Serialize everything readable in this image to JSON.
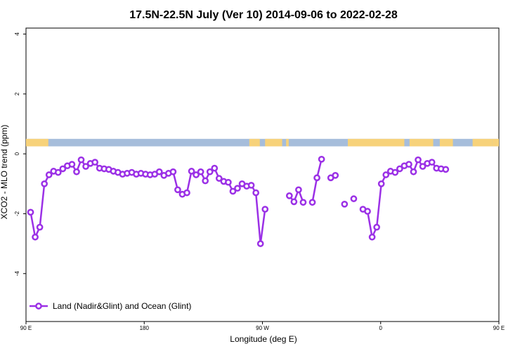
{
  "chart_data": {
    "type": "line",
    "title": "17.5N-22.5N July (Ver 10)   2014-09-06 to 2022-02-28",
    "xlabel": "Longitude (deg E)",
    "ylabel": "XCO2 - MLO trend (ppm)",
    "xlim": [
      90,
      450
    ],
    "ylim": [
      -5.6,
      4.2
    ],
    "x_ticks": [
      {
        "value": 90,
        "label": "90 E"
      },
      {
        "value": 180,
        "label": "180"
      },
      {
        "value": 270,
        "label": "90 W"
      },
      {
        "value": 360,
        "label": "0"
      },
      {
        "value": 450,
        "label": "90 E"
      },
      {
        "value": 540,
        "label": "180"
      }
    ],
    "y_ticks": [
      {
        "value": 4,
        "label": "4"
      },
      {
        "value": 2,
        "label": "2"
      },
      {
        "value": 0,
        "label": "0"
      },
      {
        "value": -2,
        "label": "-2"
      },
      {
        "value": -4,
        "label": "-4"
      }
    ],
    "land_ocean_strip": {
      "ocean_color": "#a6bddb",
      "land_color": "#f7d27a",
      "land_spans": [
        [
          90,
          107
        ],
        [
          260,
          268
        ],
        [
          272,
          285
        ],
        [
          288,
          290
        ],
        [
          335,
          378
        ],
        [
          382,
          400
        ],
        [
          405,
          415
        ],
        [
          430,
          445
        ],
        [
          445,
          450
        ],
        [
          452,
          456
        ]
      ]
    },
    "series": [
      {
        "name": "Land (Nadir&Glint) and Ocean (Glint)",
        "color": "#9b30e6",
        "points": [
          [
            93.5,
            -1.95
          ],
          [
            97,
            -2.78
          ],
          [
            100.5,
            -2.45
          ],
          [
            104,
            -1.0
          ],
          [
            107.5,
            -0.7
          ],
          [
            111,
            -0.58
          ],
          [
            114.5,
            -0.62
          ],
          [
            118,
            -0.5
          ],
          [
            121.5,
            -0.4
          ],
          [
            125,
            -0.35
          ],
          [
            128.5,
            -0.6
          ],
          [
            132,
            -0.2
          ],
          [
            135.5,
            -0.42
          ],
          [
            139,
            -0.32
          ],
          [
            142.5,
            -0.28
          ],
          [
            146,
            -0.48
          ],
          [
            149.5,
            -0.5
          ],
          [
            153,
            -0.52
          ],
          [
            156.5,
            -0.58
          ],
          [
            160,
            -0.62
          ],
          [
            163.5,
            -0.68
          ],
          [
            167,
            -0.65
          ],
          [
            170.5,
            -0.62
          ],
          [
            174,
            -0.68
          ],
          [
            177.5,
            -0.65
          ],
          [
            181,
            -0.68
          ],
          [
            184.5,
            -0.7
          ],
          [
            188,
            -0.68
          ],
          [
            191.5,
            -0.6
          ],
          [
            195,
            -0.72
          ],
          [
            198.5,
            -0.65
          ],
          [
            202,
            -0.6
          ],
          [
            205.5,
            -1.2
          ],
          [
            209,
            -1.35
          ],
          [
            212.5,
            -1.3
          ],
          [
            216,
            -0.58
          ],
          [
            219.5,
            -0.7
          ],
          [
            223,
            -0.6
          ],
          [
            226.5,
            -0.9
          ],
          [
            230,
            -0.6
          ],
          [
            233.5,
            -0.48
          ],
          [
            237,
            -0.82
          ],
          [
            240.5,
            -0.92
          ],
          [
            244,
            -0.95
          ],
          [
            247.5,
            -1.25
          ],
          [
            251,
            -1.15
          ],
          [
            254.5,
            -1.0
          ],
          [
            258,
            -1.08
          ],
          [
            261.5,
            -1.05
          ],
          [
            265,
            -1.3
          ],
          [
            268.5,
            -3.0
          ],
          [
            272,
            -1.85
          ],
          null,
          [
            290.5,
            -1.4
          ],
          [
            294,
            -1.6
          ],
          [
            297.5,
            -1.2
          ],
          [
            301,
            -1.62
          ],
          null,
          [
            308,
            -1.62
          ],
          [
            311.5,
            -0.8
          ],
          [
            315,
            -0.18
          ],
          null,
          [
            322,
            -0.8
          ],
          [
            325.5,
            -0.72
          ],
          null,
          [
            332.5,
            -1.68
          ],
          null,
          [
            339.5,
            -1.5
          ],
          null,
          [
            346.5,
            -1.85
          ],
          [
            350,
            -1.92
          ],
          [
            353.5,
            -2.78
          ],
          [
            357,
            -2.45
          ],
          [
            360.5,
            -1.0
          ],
          [
            364,
            -0.7
          ],
          [
            367.5,
            -0.58
          ],
          [
            371,
            -0.62
          ],
          [
            374.5,
            -0.5
          ],
          [
            378,
            -0.4
          ],
          [
            381.5,
            -0.35
          ],
          [
            385,
            -0.6
          ],
          [
            388.5,
            -0.2
          ],
          [
            392,
            -0.42
          ],
          [
            395.5,
            -0.32
          ],
          [
            399,
            -0.28
          ],
          [
            402.5,
            -0.48
          ],
          [
            406,
            -0.5
          ],
          [
            409.5,
            -0.52
          ]
        ]
      }
    ],
    "legend": {
      "placement": "bottom-left",
      "label": "Land (Nadir&Glint) and Ocean (Glint)"
    }
  }
}
